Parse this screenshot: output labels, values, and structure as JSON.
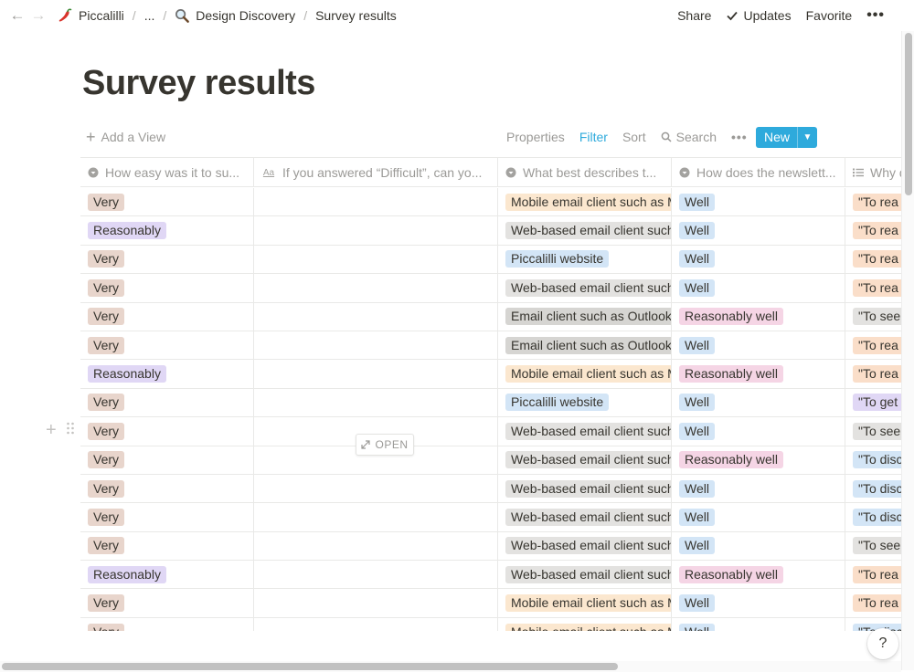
{
  "nav": {
    "back_icon": "arrow-left-icon",
    "forward_icon": "arrow-right-icon"
  },
  "breadcrumb": [
    {
      "label": "Piccalilli",
      "icon": "chili-pepper-icon"
    },
    {
      "label": "..."
    },
    {
      "label": "Design Discovery",
      "icon": "magnifying-glass-icon"
    },
    {
      "label": "Survey results"
    }
  ],
  "top_actions": {
    "share": "Share",
    "updates": "Updates",
    "favorite": "Favorite",
    "more": "•••"
  },
  "page_title": "Survey results",
  "view_toolbar": {
    "add_view": "Add a View",
    "properties": "Properties",
    "filter": "Filter",
    "sort": "Sort",
    "search": "Search",
    "more": "•••",
    "new": "New"
  },
  "table": {
    "columns": [
      {
        "label": "How easy was it to su...",
        "icon": "select-icon"
      },
      {
        "label": "If you answered “Difficult”, can yo...",
        "icon": "text-icon"
      },
      {
        "label": "What best describes t...",
        "icon": "select-icon"
      },
      {
        "label": "How does the newslett...",
        "icon": "select-icon"
      },
      {
        "label": "Why d",
        "icon": "multi-select-icon"
      }
    ],
    "rows": [
      [
        "Very",
        "",
        "Mobile email client such as M",
        "Well",
        "\"To rea"
      ],
      [
        "Reasonably",
        "",
        "Web-based email client such",
        "Well",
        "\"To rea"
      ],
      [
        "Very",
        "",
        "Piccalilli website",
        "Well",
        "\"To rea"
      ],
      [
        "Very",
        "",
        "Web-based email client such",
        "Well",
        "\"To rea"
      ],
      [
        "Very",
        "",
        "Email client such as Outlook",
        "Reasonably well",
        "\"To see"
      ],
      [
        "Very",
        "",
        "Email client such as Outlook",
        "Well",
        "\"To rea"
      ],
      [
        "Reasonably",
        "",
        "Mobile email client such as M",
        "Reasonably well",
        "\"To rea"
      ],
      [
        "Very",
        "",
        "Piccalilli website",
        "Well",
        "\"To get"
      ],
      [
        "Very",
        "",
        "Web-based email client such",
        "Well",
        "\"To see"
      ],
      [
        "Very",
        "",
        "Web-based email client such",
        "Reasonably well",
        "\"To disc"
      ],
      [
        "Very",
        "",
        "Web-based email client such",
        "Well",
        "\"To disc"
      ],
      [
        "Very",
        "",
        "Web-based email client such",
        "Well",
        "\"To disc"
      ],
      [
        "Very",
        "",
        "Web-based email client such",
        "Well",
        "\"To see"
      ],
      [
        "Reasonably",
        "",
        "Web-based email client such",
        "Reasonably well",
        "\"To rea"
      ],
      [
        "Very",
        "",
        "Mobile email client such as M",
        "Well",
        "\"To rea"
      ],
      [
        "Very",
        "",
        "Mobile email client such as M",
        "Well",
        "\"To disc"
      ]
    ],
    "open_label": "OPEN"
  },
  "tag_colors": {
    "Very": "#e8d5cc",
    "Reasonably": "#e0d7f5",
    "Mobile email client such as M": "#fbe7cf",
    "Web-based email client such": "#e3e2e0",
    "Piccalilli website": "#d3e5f6",
    "Email client such as Outlook": "#d6d5d2",
    "Well": "#d3e5f6",
    "Reasonably well": "#f5d5e5",
    "\"To rea": "#fadec9",
    "\"To see": "#e3e2e0",
    "\"To get": "#e0d7f5",
    "\"To disc": "#d3e5f6"
  },
  "help": "?"
}
